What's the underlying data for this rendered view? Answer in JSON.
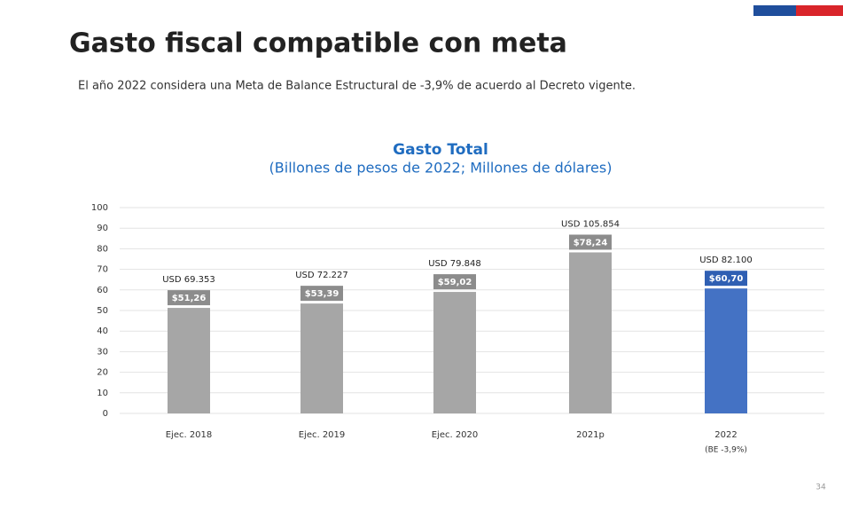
{
  "header": {
    "title": "Gasto fiscal compatible con meta",
    "subtitle": "El año 2022 considera una Meta de Balance Estructural de -3,9% de acuerdo al Decreto vigente.",
    "page_number": "34"
  },
  "chart_data": {
    "type": "bar",
    "title": "Gasto Total",
    "subtitle": "(Billones de pesos de 2022; Millones de dólares)",
    "categories": [
      "Ejec. 2018",
      "Ejec. 2019",
      "Ejec. 2020",
      "2021p",
      "2022"
    ],
    "category_sublabels": [
      null,
      null,
      null,
      null,
      "(BE -3,9%)"
    ],
    "values": [
      51.26,
      53.39,
      59.02,
      78.24,
      60.7
    ],
    "value_labels": [
      "$51,26",
      "$53,39",
      "$59,02",
      "$78,24",
      "$60,70"
    ],
    "usd": {
      "values": [
        69353,
        72227,
        79848,
        105854,
        82100
      ],
      "value_labels": [
        "USD 69.353",
        "USD 72.227",
        "USD 79.848",
        "USD 105.854",
        "USD 82.100"
      ]
    },
    "colors": [
      "#a6a6a6",
      "#a6a6a6",
      "#a6a6a6",
      "#a6a6a6",
      "#4472c4"
    ],
    "ylim": [
      0,
      100
    ],
    "yticks": [
      0,
      10,
      20,
      30,
      40,
      50,
      60,
      70,
      80,
      90,
      100
    ],
    "grid": true
  }
}
